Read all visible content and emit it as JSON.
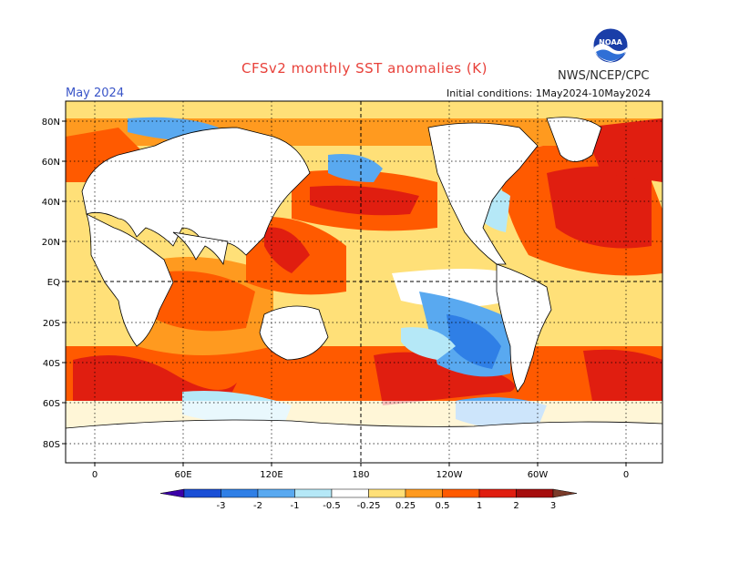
{
  "header": {
    "title": "CFSv2 monthly SST anomalies (K)",
    "agency": "NWS/NCEP/CPC",
    "valid_label": "May 2024",
    "initial_conditions": "Initial conditions: 1May2024-10May2024",
    "logo_text": "NOAA"
  },
  "map": {
    "lat_labels": [
      "80N",
      "60N",
      "40N",
      "20N",
      "EQ",
      "20S",
      "40S",
      "60S",
      "80S"
    ],
    "lon_labels": [
      "0",
      "60E",
      "120E",
      "180",
      "120W",
      "60W",
      "0"
    ]
  },
  "colorbar": {
    "colors": [
      "#3b00a8",
      "#1a4fd6",
      "#2f7fe6",
      "#59a9f0",
      "#b5e8f7",
      "#ffffff",
      "#ffe078",
      "#ff9a1f",
      "#ff5a00",
      "#e01e10",
      "#a50d0d",
      "#7a3b2a"
    ],
    "tick_labels": [
      "-3",
      "-2",
      "-1",
      "-0.5",
      "-0.25",
      "0.25",
      "0.5",
      "1",
      "2",
      "3"
    ]
  }
}
